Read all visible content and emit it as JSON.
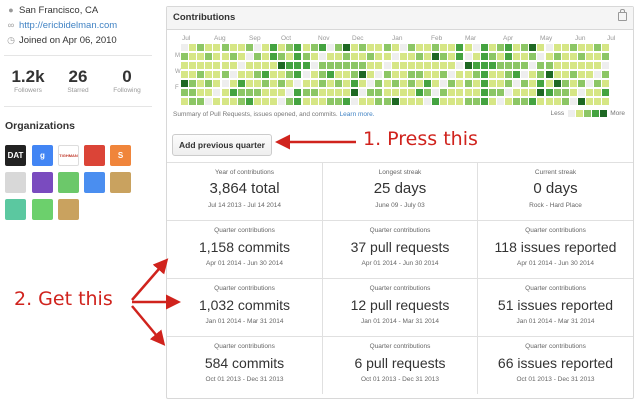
{
  "profile": {
    "location": "San Francisco, CA",
    "website": "http://ericbidelman.com",
    "joined": "Joined on Apr 06, 2010",
    "stats": [
      {
        "value": "1.2k",
        "label": "Followers"
      },
      {
        "value": "26",
        "label": "Starred"
      },
      {
        "value": "0",
        "label": "Following"
      }
    ],
    "organizations_title": "Organizations",
    "orgs": [
      {
        "text": "DAT",
        "bg": "#222222",
        "fg": "#ffffff"
      },
      {
        "text": "g",
        "bg": "#4285f4",
        "fg": "#ffffff"
      },
      {
        "text": "TIGHMAN",
        "bg": "#ffffff",
        "fg": "#c0392b"
      },
      {
        "text": "",
        "bg": "#db4437",
        "fg": "#ffffff"
      },
      {
        "text": "S",
        "bg": "#f0853b",
        "fg": "#ffffff"
      },
      {
        "text": "",
        "bg": "#d8d8d8",
        "fg": "#333333"
      },
      {
        "text": "",
        "bg": "#7a4bbf",
        "fg": "#ffffff"
      },
      {
        "text": "",
        "bg": "#6cc86a",
        "fg": "#ffffff"
      },
      {
        "text": "",
        "bg": "#4a8ef0",
        "fg": "#ffffff"
      },
      {
        "text": "",
        "bg": "#c9a25f",
        "fg": "#ffffff"
      },
      {
        "text": "",
        "bg": "#5bc8a0",
        "fg": "#ffffff"
      },
      {
        "text": "",
        "bg": "#6cd06c",
        "fg": "#ffffff"
      },
      {
        "text": "",
        "bg": "#c9a25f",
        "fg": "#ffffff"
      }
    ]
  },
  "contributions": {
    "title": "Contributions",
    "months": [
      "Jul",
      "Aug",
      "Sep",
      "Oct",
      "Nov",
      "Dec",
      "Jan",
      "Feb",
      "Mar",
      "Apr",
      "May",
      "Jun",
      "Jul"
    ],
    "days": [
      "M",
      "W",
      "F"
    ],
    "summary_prefix": "Summary of Pull Requests, issues opened, and commits.",
    "learn_more": "Learn more.",
    "legend_less": "Less",
    "legend_more": "More",
    "colors": [
      "#d6e685",
      "#8cc665",
      "#44a340",
      "#1e6823"
    ],
    "button": "Add previous quarter",
    "stats": [
      {
        "label": "Year of contributions",
        "value": "3,864 total",
        "range": "Jul 14 2013 - Jul 14 2014"
      },
      {
        "label": "Longest streak",
        "value": "25 days",
        "range": "June 09 - July 03"
      },
      {
        "label": "Current streak",
        "value": "0 days",
        "range": "Rock - Hard Place"
      }
    ],
    "quarters": [
      [
        {
          "label": "Quarter contributions",
          "value": "1,158 commits",
          "range": "Apr 01 2014 - Jun 30 2014"
        },
        {
          "label": "Quarter contributions",
          "value": "37 pull requests",
          "range": "Apr 01 2014 - Jun 30 2014"
        },
        {
          "label": "Quarter contributions",
          "value": "118 issues reported",
          "range": "Apr 01 2014 - Jun 30 2014"
        }
      ],
      [
        {
          "label": "Quarter contributions",
          "value": "1,032 commits",
          "range": "Jan 01 2014 - Mar 31 2014"
        },
        {
          "label": "Quarter contributions",
          "value": "12 pull requests",
          "range": "Jan 01 2014 - Mar 31 2014"
        },
        {
          "label": "Quarter contributions",
          "value": "51 issues reported",
          "range": "Jan 01 2014 - Mar 31 2014"
        }
      ],
      [
        {
          "label": "Quarter contributions",
          "value": "584 commits",
          "range": "Oct 01 2013 - Dec 31 2013"
        },
        {
          "label": "Quarter contributions",
          "value": "6 pull requests",
          "range": "Oct 01 2013 - Dec 31 2013"
        },
        {
          "label": "Quarter contributions",
          "value": "66 issues reported",
          "range": "Oct 01 2013 - Dec 31 2013"
        }
      ]
    ]
  },
  "annotations": {
    "press": "1. Press this",
    "get": "2. Get this",
    "color": "#d0231d"
  }
}
